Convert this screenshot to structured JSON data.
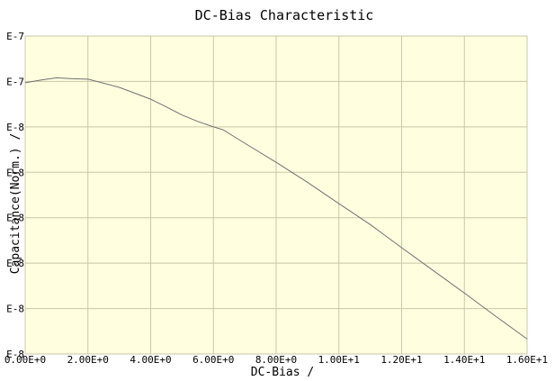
{
  "chart_data": {
    "type": "line",
    "title": "DC-Bias Characteristic",
    "xlabel": "DC-Bias /",
    "ylabel": "Capacitance(Norm.) /",
    "xlim": [
      0,
      16
    ],
    "ylim": [
      0,
      7
    ],
    "x_tick_labels": [
      "0.00E+0",
      "2.00E+0",
      "4.00E+0",
      "6.00E+0",
      "8.00E+0",
      "1.00E+1",
      "1.20E+1",
      "1.40E+1",
      "1.60E+1"
    ],
    "y_tick_labels": [
      "E-8",
      "E-8",
      "E-8",
      "E-8",
      "E-8",
      "E-8",
      "E-7",
      "E-7"
    ],
    "grid": true,
    "background_color": "#ffffe0",
    "grid_color": "#c8c8a8",
    "line_color": "#707070",
    "series": [
      {
        "x": [
          0,
          0.5,
          1.0,
          1.5,
          2.0,
          2.5,
          3.0,
          3.5,
          4.0,
          4.5,
          5.0,
          5.5,
          6.0,
          6.3,
          7.0,
          8.0,
          9.0,
          10.0,
          11.0,
          12.0,
          13.0,
          14.0,
          15.0,
          16.0
        ],
        "y": [
          5.97,
          6.03,
          6.08,
          6.06,
          6.05,
          5.96,
          5.87,
          5.74,
          5.61,
          5.44,
          5.26,
          5.12,
          5.0,
          4.94,
          4.64,
          4.22,
          3.78,
          3.31,
          2.85,
          2.34,
          1.84,
          1.34,
          0.83,
          0.33
        ]
      }
    ]
  }
}
